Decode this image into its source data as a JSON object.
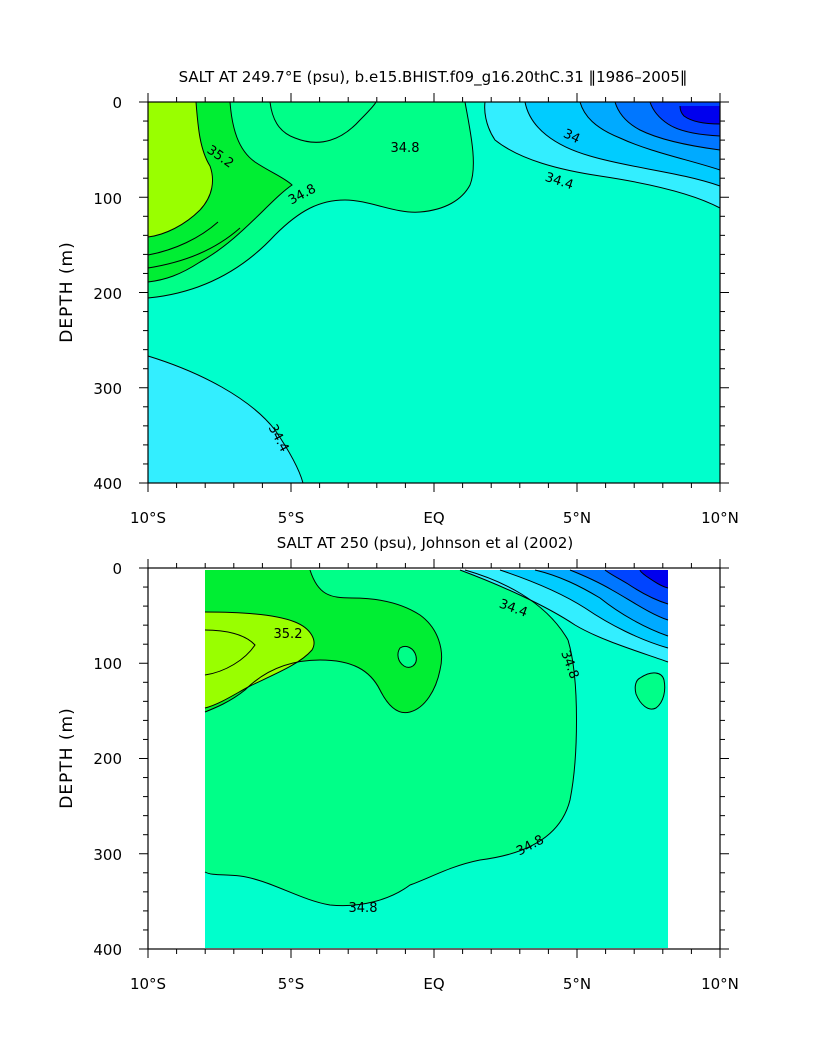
{
  "chart_data": [
    {
      "type": "contour",
      "title": "SALT AT 249.7°E (psu), b.e15.BHIST.f09_g16.20thC.31 ‖1986–2005‖",
      "xlabel": "",
      "ylabel": "DEPTH (m)",
      "x_ticks": [
        "10°S",
        "5°S",
        "EQ",
        "5°N",
        "10°N"
      ],
      "y_ticks": [
        "0",
        "100",
        "200",
        "300",
        "400"
      ],
      "xlim": [
        -10,
        10
      ],
      "ylim": [
        400,
        0
      ],
      "contour_labels": [
        "35.2",
        "34.8",
        "34.8",
        "34",
        "34.4",
        "34.4"
      ]
    },
    {
      "type": "contour",
      "title": "SALT AT 250 (psu), Johnson et al (2002)",
      "xlabel": "",
      "ylabel": "DEPTH (m)",
      "x_ticks": [
        "10°S",
        "5°S",
        "EQ",
        "5°N",
        "10°N"
      ],
      "y_ticks": [
        "0",
        "100",
        "200",
        "300",
        "400"
      ],
      "xlim": [
        -10,
        10
      ],
      "ylim": [
        400,
        0
      ],
      "contour_labels": [
        "35.2",
        "34.4",
        "34.8",
        "34.8",
        "34.8"
      ]
    }
  ],
  "colors": {
    "c_lime": "#99ff00",
    "c_green": "#00ee33",
    "c_mint": "#00ff88",
    "c_aqua": "#00ffcc",
    "c_cyan": "#33eeff",
    "c_sky": "#00ccff",
    "c_blue1": "#00aaff",
    "c_blue2": "#0077ff",
    "c_blue3": "#0044ff",
    "c_blue4": "#0000ee"
  }
}
